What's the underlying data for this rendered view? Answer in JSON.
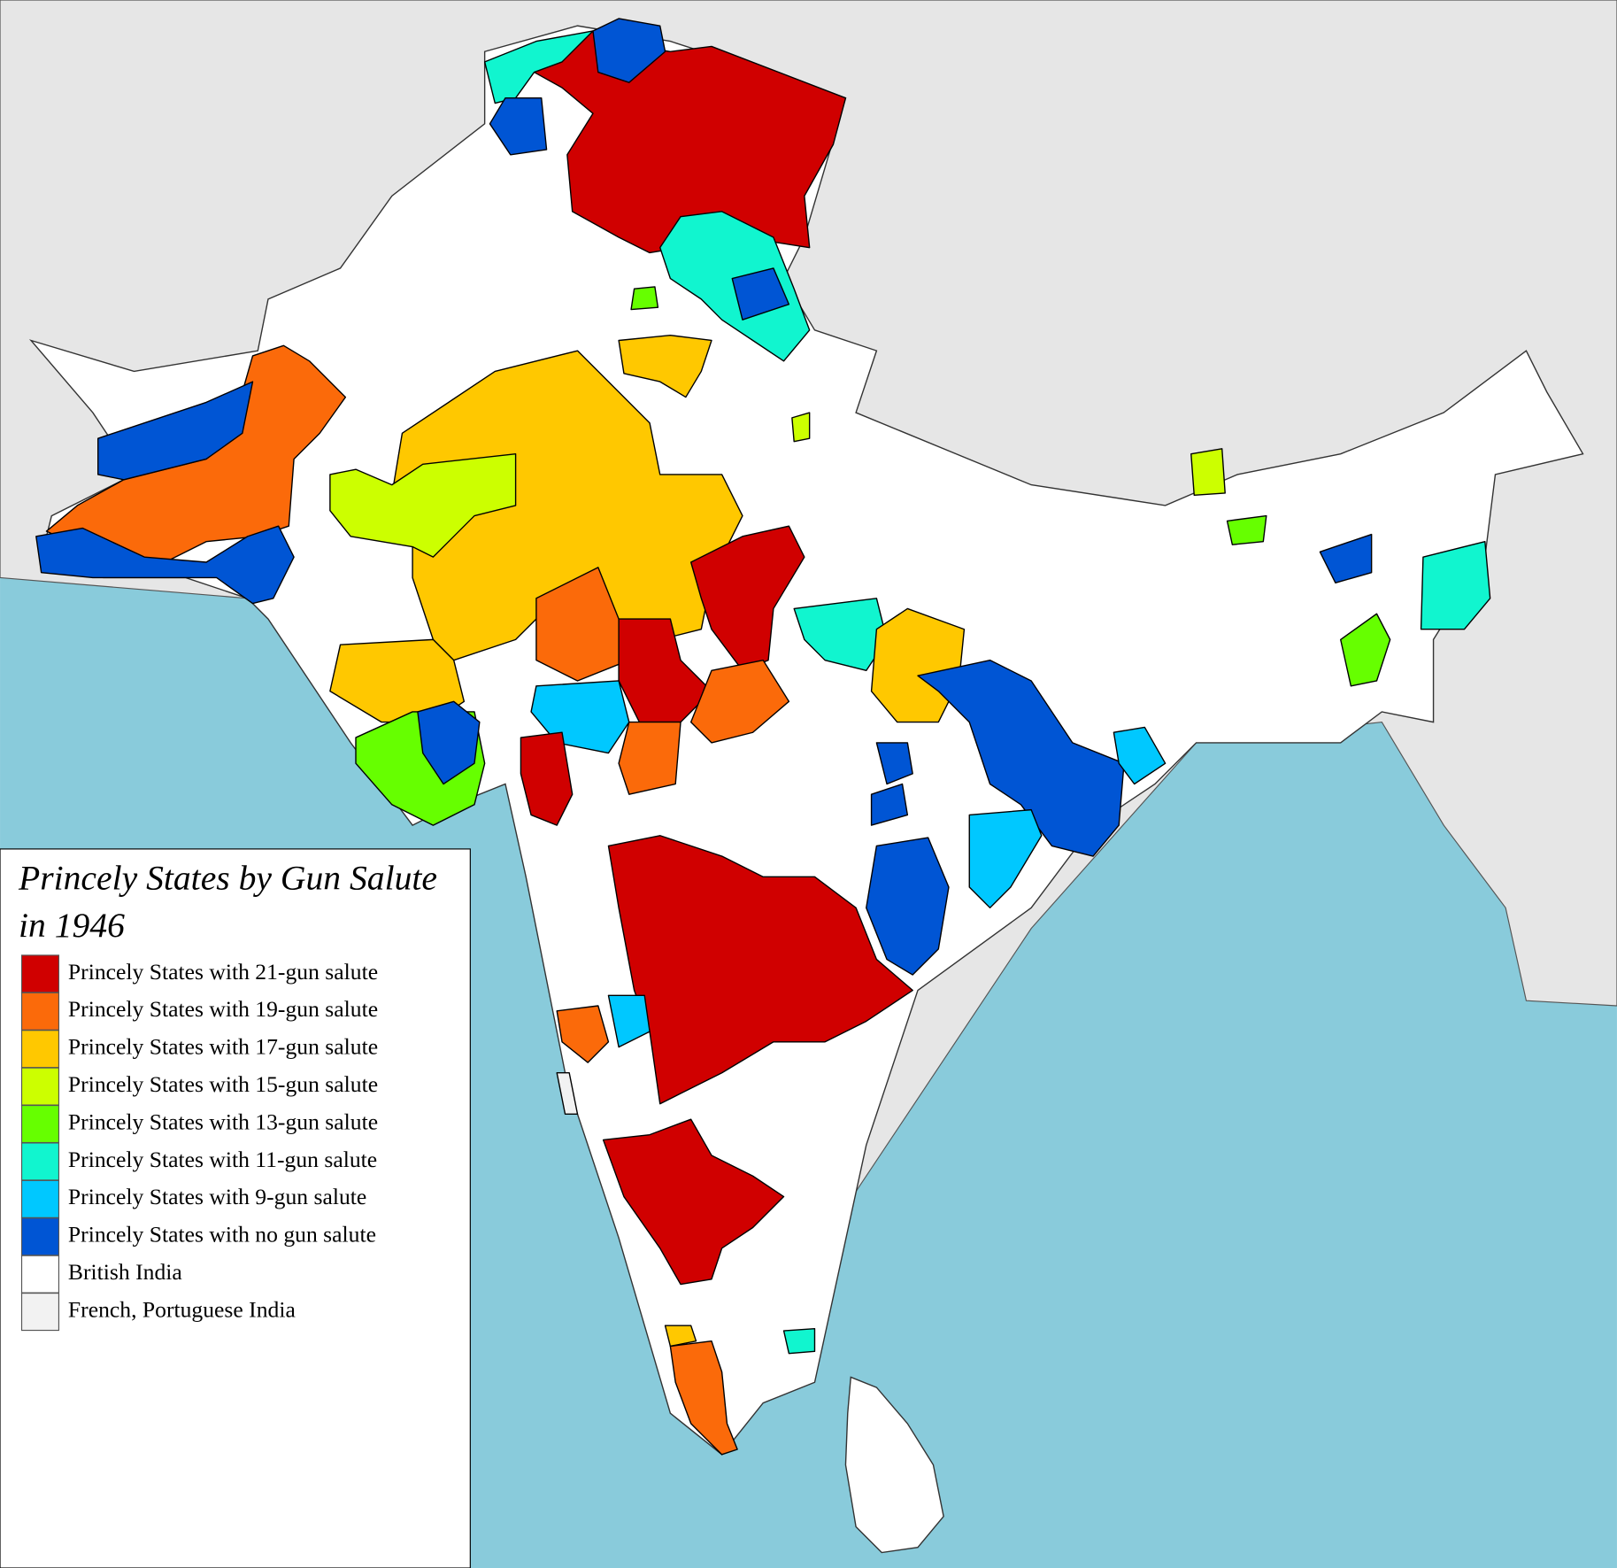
{
  "title": [
    "Princely States by Gun Salute",
    "in 1946"
  ],
  "legend": [
    {
      "label": "Princely States with 21-gun salute",
      "color": "#d00000"
    },
    {
      "label": "Princely States with 19-gun salute",
      "color": "#fb6a0a"
    },
    {
      "label": "Princely States with 17-gun salute",
      "color": "#ffc800"
    },
    {
      "label": "Princely States with 15-gun salute",
      "color": "#ccff00"
    },
    {
      "label": "Princely States with 13-gun salute",
      "color": "#66ff00"
    },
    {
      "label": "Princely States with 11-gun salute",
      "color": "#11f5cf"
    },
    {
      "label": "Princely States with 9-gun salute",
      "color": "#00c8ff"
    },
    {
      "label": "Princely States with no gun salute",
      "color": "#0055d4"
    },
    {
      "label": "British India",
      "color": "#ffffff"
    },
    {
      "label": "French, Portuguese India",
      "color": "#f2f2f2"
    }
  ]
}
